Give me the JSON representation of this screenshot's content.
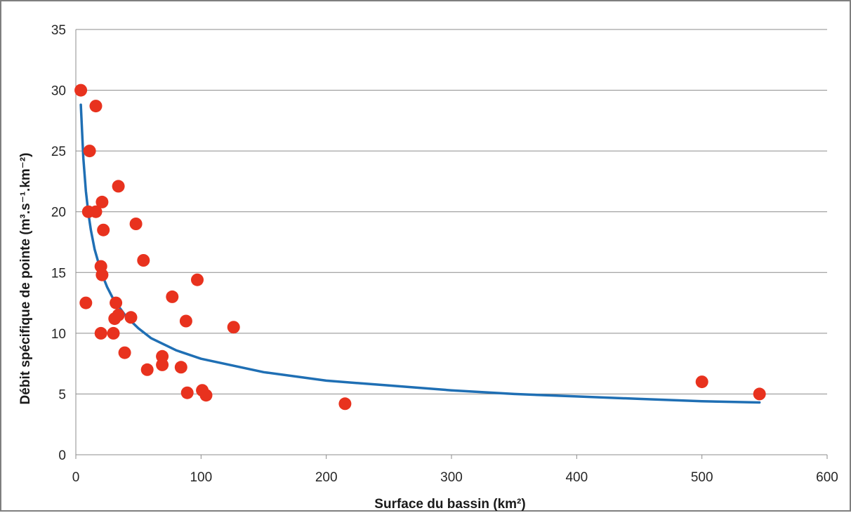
{
  "chart_data": {
    "type": "scatter",
    "title": "",
    "xlabel": "Surface du bassin (km²)",
    "ylabel": "Débit spécifique de pointe (m³.s⁻¹.km⁻²)",
    "xlim": [
      0,
      600
    ],
    "ylim": [
      0,
      35
    ],
    "xticks": [
      "0",
      "100",
      "200",
      "300",
      "400",
      "500",
      "600"
    ],
    "yticks": [
      "0",
      "5",
      "10",
      "15",
      "20",
      "25",
      "30",
      "35"
    ],
    "grid": "horizontal",
    "legend": "none",
    "colors": {
      "points": "#e8321e",
      "trend": "#1f6fb4",
      "grid": "#8c8c8c"
    },
    "series": [
      {
        "kind": "points",
        "x": [
          4,
          8,
          10,
          11,
          16,
          16,
          20,
          20,
          21,
          21,
          22,
          30,
          31,
          32,
          34,
          34,
          39,
          44,
          48,
          54,
          57,
          69,
          69,
          77,
          84,
          88,
          89,
          97,
          101,
          104,
          126,
          215,
          500,
          546
        ],
        "y": [
          30,
          12.5,
          20,
          25,
          28.7,
          20,
          10,
          15.5,
          14.8,
          20.8,
          18.5,
          10,
          11.2,
          12.5,
          22.1,
          11.5,
          8.4,
          11.3,
          19,
          16,
          7,
          7.4,
          8.1,
          13,
          7.2,
          11,
          5.1,
          14.4,
          5.3,
          4.9,
          10.5,
          4.2,
          6,
          5
        ]
      },
      {
        "kind": "trend-line",
        "x": [
          4,
          6,
          8,
          10,
          12,
          15,
          20,
          25,
          30,
          40,
          50,
          60,
          80,
          100,
          150,
          200,
          250,
          300,
          350,
          400,
          450,
          500,
          546
        ],
        "y": [
          28.8,
          24.4,
          21.7,
          19.9,
          18.5,
          16.9,
          15.1,
          13.8,
          12.8,
          11.4,
          10.4,
          9.6,
          8.6,
          7.9,
          6.8,
          6.1,
          5.7,
          5.3,
          5.0,
          4.8,
          4.6,
          4.4,
          4.3
        ]
      }
    ]
  }
}
